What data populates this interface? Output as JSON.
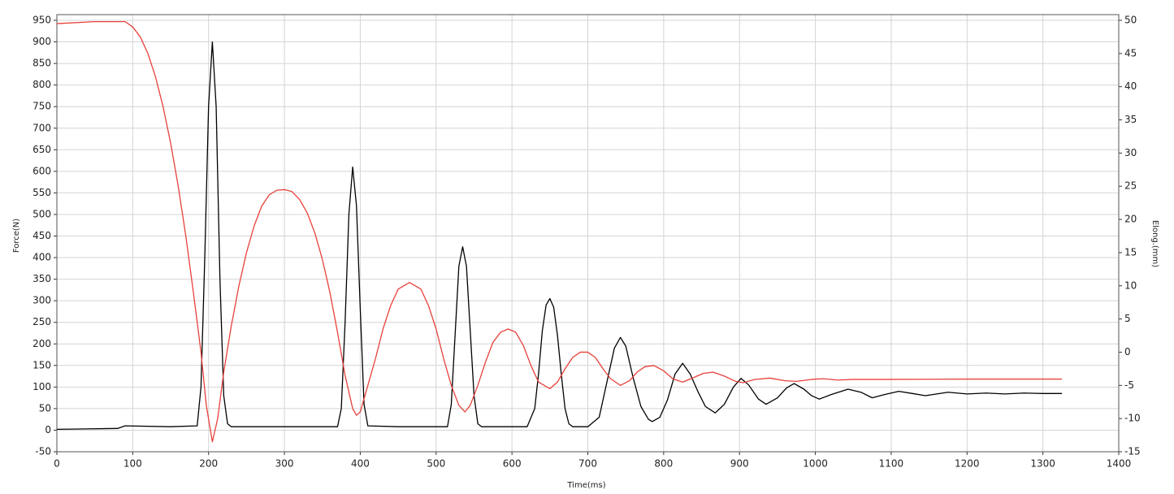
{
  "chart_data": {
    "type": "line",
    "xlabel": "Time(ms)",
    "ylabel": "Force(N)",
    "y2label": "Elong.(mm)",
    "xlim": [
      0,
      1400
    ],
    "xticks": [
      0,
      100,
      200,
      300,
      400,
      500,
      600,
      700,
      800,
      900,
      1000,
      1100,
      1200,
      1300,
      1400
    ],
    "ylim": [
      -50,
      950
    ],
    "yticks": [
      -50,
      0,
      50,
      100,
      150,
      200,
      250,
      300,
      350,
      400,
      450,
      500,
      550,
      600,
      650,
      700,
      750,
      800,
      850,
      900,
      950
    ],
    "y2lim": [
      -15,
      50
    ],
    "y2ticks": [
      -15,
      -10,
      -5,
      0,
      5,
      10,
      15,
      20,
      25,
      30,
      35,
      40,
      45,
      50
    ],
    "grid": true,
    "series": [
      {
        "color": "#000000",
        "x": [
          0,
          40,
          80,
          90,
          150,
          185,
          190,
          195,
          200,
          205,
          210,
          215,
          220,
          225,
          230,
          300,
          370,
          375,
          380,
          385,
          390,
          395,
          400,
          405,
          410,
          450,
          515,
          520,
          525,
          530,
          535,
          540,
          545,
          550,
          555,
          560,
          620,
          630,
          635,
          640,
          645,
          650,
          655,
          660,
          665,
          670,
          675,
          680,
          700,
          715,
          725,
          735,
          743,
          750,
          760,
          770,
          780,
          785,
          795,
          805,
          815,
          825,
          835,
          845,
          855,
          868,
          880,
          892,
          902,
          912,
          925,
          935,
          950,
          962,
          972,
          985,
          995,
          1005,
          1020,
          1043,
          1060,
          1075,
          1090,
          1110,
          1128,
          1145,
          1160,
          1175,
          1200,
          1225,
          1250,
          1275,
          1300,
          1325
        ],
        "values": [
          2,
          3,
          4,
          10,
          8,
          10,
          100,
          400,
          750,
          900,
          750,
          350,
          80,
          15,
          8,
          8,
          8,
          50,
          250,
          500,
          610,
          520,
          280,
          60,
          10,
          8,
          8,
          60,
          220,
          380,
          425,
          380,
          230,
          80,
          15,
          8,
          8,
          50,
          130,
          230,
          290,
          305,
          285,
          220,
          130,
          50,
          15,
          8,
          8,
          30,
          110,
          190,
          215,
          195,
          120,
          55,
          25,
          20,
          30,
          70,
          130,
          155,
          130,
          90,
          55,
          40,
          60,
          100,
          120,
          105,
          72,
          60,
          75,
          98,
          108,
          95,
          80,
          72,
          82,
          95,
          88,
          75,
          82,
          90,
          85,
          80,
          84,
          88,
          84,
          86,
          84,
          86,
          85,
          85
        ]
      },
      {
        "color": "#e8403a",
        "axis": "y2",
        "x": [
          0,
          50,
          90,
          100,
          110,
          120,
          130,
          140,
          150,
          160,
          170,
          180,
          190,
          197,
          205,
          212,
          220,
          230,
          240,
          250,
          260,
          270,
          280,
          290,
          300,
          310,
          320,
          330,
          340,
          350,
          360,
          370,
          380,
          390,
          395,
          400,
          410,
          420,
          430,
          440,
          450,
          465,
          480,
          490,
          500,
          510,
          520,
          530,
          538,
          545,
          555,
          565,
          575,
          585,
          595,
          605,
          615,
          625,
          635,
          650,
          660,
          670,
          680,
          690,
          700,
          710,
          720,
          730,
          743,
          755,
          765,
          775,
          787,
          800,
          812,
          825,
          840,
          852,
          865,
          880,
          895,
          905,
          920,
          940,
          960,
          975,
          995,
          1010,
          1030,
          1050,
          1100,
          1200,
          1325
        ],
        "values": [
          49.5,
          49.8,
          49.8,
          49,
          47.5,
          45,
          41.5,
          37,
          31.5,
          25,
          17.5,
          9,
          0,
          -8,
          -13.5,
          -10,
          -3,
          4,
          10,
          15,
          19,
          22,
          23.7,
          24.4,
          24.5,
          24.2,
          23,
          21,
          18,
          14,
          9,
          3,
          -3.5,
          -8.5,
          -9.5,
          -9,
          -5,
          -1,
          3.5,
          7,
          9.5,
          10.5,
          9.5,
          7,
          3.5,
          -1,
          -5,
          -8,
          -9,
          -8,
          -5,
          -1.5,
          1.5,
          3,
          3.5,
          3,
          1,
          -2,
          -4.5,
          -5.5,
          -4.5,
          -2.5,
          -0.8,
          0,
          0,
          -0.8,
          -2.5,
          -4,
          -5,
          -4.3,
          -3,
          -2.2,
          -2,
          -2.8,
          -4,
          -4.5,
          -3.8,
          -3.2,
          -3,
          -3.6,
          -4.4,
          -4.6,
          -4.1,
          -3.9,
          -4.3,
          -4.4,
          -4.1,
          -4,
          -4.2,
          -4.1,
          -4.1,
          -4.05,
          -4.05
        ]
      }
    ]
  }
}
